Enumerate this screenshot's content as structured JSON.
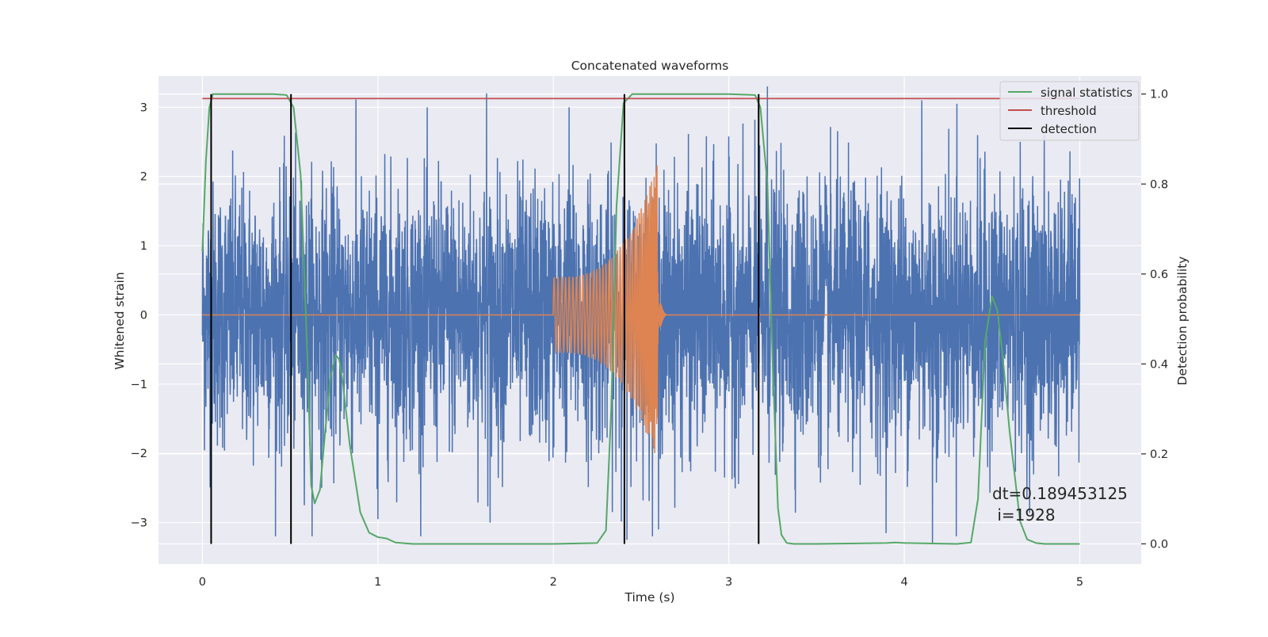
{
  "chart_data": {
    "type": "line",
    "title": "Concatenated waveforms",
    "xlabel": "Time (s)",
    "ylabel_left": "Whitened strain",
    "ylabel_right": "Detection probability",
    "xlim": [
      -0.25,
      5.35
    ],
    "ylim_left": [
      -3.6,
      3.45
    ],
    "ylim_right": [
      -0.045,
      1.04
    ],
    "xticks": [
      0,
      1,
      2,
      3,
      4,
      5
    ],
    "xtick_labels": [
      "0",
      "1",
      "2",
      "3",
      "4",
      "5"
    ],
    "yticks_left": [
      -3,
      -2,
      -1,
      0,
      1,
      2,
      3
    ],
    "ytick_labels_left": [
      "−3",
      "−2",
      "−1",
      "0",
      "1",
      "2",
      "3"
    ],
    "yticks_right": [
      0.0,
      0.2,
      0.4,
      0.6,
      0.8,
      1.0
    ],
    "ytick_labels_right": [
      "0.0",
      "0.2",
      "0.4",
      "0.6",
      "0.8",
      "1.0"
    ],
    "grid": true,
    "legend_position": "top-right",
    "series": [
      {
        "name": "",
        "axis": "left",
        "kind": "noise strain",
        "x_range": [
          0,
          5
        ],
        "envelope_abs_max": 3.2,
        "color": "#4c72b0"
      },
      {
        "name": "",
        "axis": "left",
        "kind": "chirp waveform",
        "x_range": [
          0,
          5
        ],
        "chirp_start": 2.0,
        "chirp_merger": 2.6,
        "peak_amplitude": 2.25,
        "color": "#dd8452"
      },
      {
        "name": "signal statistics",
        "axis": "right",
        "color": "#55a868",
        "x": [
          0.0,
          0.02,
          0.04,
          0.06,
          0.1,
          0.2,
          0.4,
          0.48,
          0.52,
          0.56,
          0.6,
          0.62,
          0.64,
          0.67,
          0.7,
          0.73,
          0.76,
          0.78,
          0.8,
          0.84,
          0.9,
          0.95,
          1.0,
          1.05,
          1.1,
          1.2,
          1.5,
          2.0,
          2.25,
          2.3,
          2.33,
          2.36,
          2.4,
          2.45,
          2.5,
          2.6,
          3.0,
          3.15,
          3.18,
          3.22,
          3.25,
          3.28,
          3.3,
          3.33,
          3.37,
          3.5,
          3.9,
          3.95,
          4.0,
          4.3,
          4.38,
          4.42,
          4.46,
          4.5,
          4.53,
          4.56,
          4.6,
          4.66,
          4.7,
          4.75,
          4.8,
          5.0
        ],
        "values": [
          0.65,
          0.85,
          0.97,
          1.0,
          1.0,
          1.0,
          1.0,
          0.998,
          0.97,
          0.82,
          0.4,
          0.13,
          0.09,
          0.12,
          0.25,
          0.37,
          0.42,
          0.41,
          0.36,
          0.22,
          0.07,
          0.025,
          0.015,
          0.012,
          0.003,
          0.0,
          0.0,
          0.0,
          0.002,
          0.03,
          0.3,
          0.75,
          0.98,
          1.0,
          1.0,
          1.0,
          1.0,
          0.998,
          0.97,
          0.8,
          0.4,
          0.08,
          0.02,
          0.002,
          0.0,
          0.0,
          0.002,
          0.003,
          0.002,
          0.0,
          0.003,
          0.1,
          0.45,
          0.55,
          0.52,
          0.42,
          0.25,
          0.05,
          0.01,
          0.002,
          0.0,
          0.0
        ]
      },
      {
        "name": "threshold",
        "axis": "right",
        "color": "#c44e52",
        "x": [
          0,
          5
        ],
        "values": [
          0.99,
          0.99
        ]
      },
      {
        "name": "detection",
        "axis": "right",
        "color": "#000000",
        "style": "vertical lines",
        "x": [
          0.05,
          0.505,
          2.405,
          3.17
        ],
        "range": [
          0.0,
          1.0
        ]
      }
    ],
    "spikes_left_axis": [
      {
        "x": 1.62,
        "y": 3.2
      },
      {
        "x": 2.09,
        "y": 3.0
      },
      {
        "x": 4.3,
        "y": 3.05
      },
      {
        "x": 4.1,
        "y": 3.1
      },
      {
        "x": 3.22,
        "y": 3.3
      },
      {
        "x": 4.16,
        "y": -3.3
      },
      {
        "x": 1.0,
        "y": -2.95
      },
      {
        "x": 1.64,
        "y": -3.0
      },
      {
        "x": 2.42,
        "y": -3.25
      },
      {
        "x": 2.6,
        "y": -3.1
      }
    ],
    "annotations": [
      {
        "text": "dt=0.189453125",
        "x": 4.5,
        "y_frac": 0.145
      },
      {
        "text": " i=1928",
        "x": 4.5,
        "y_frac": 0.1
      }
    ]
  }
}
